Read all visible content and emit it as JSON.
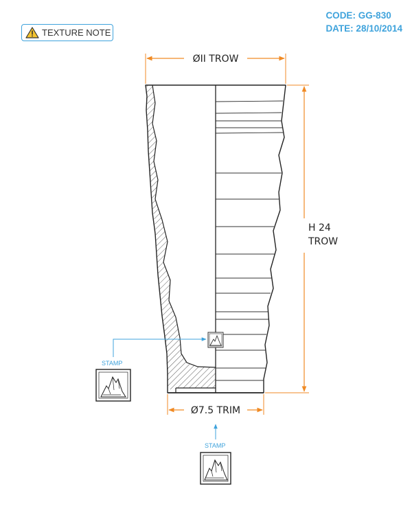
{
  "header": {
    "code": "CODE: GG-830",
    "date": "DATE: 28/10/2014"
  },
  "texture_note": {
    "label": "TEXTURE NOTE",
    "icon": "warning-triangle-icon"
  },
  "dimensions": {
    "top_diameter": "ØII TROW",
    "height_line1": "H 24",
    "height_line2": "TROW",
    "base_diameter": "Ø7.5 TRIM"
  },
  "callouts": {
    "stamp_left_label": "STAMP",
    "stamp_bottom_label": "STAMP"
  },
  "colors": {
    "accent_blue": "#3fa3dc",
    "dimension_orange": "#f08a24",
    "line": "#222222"
  }
}
